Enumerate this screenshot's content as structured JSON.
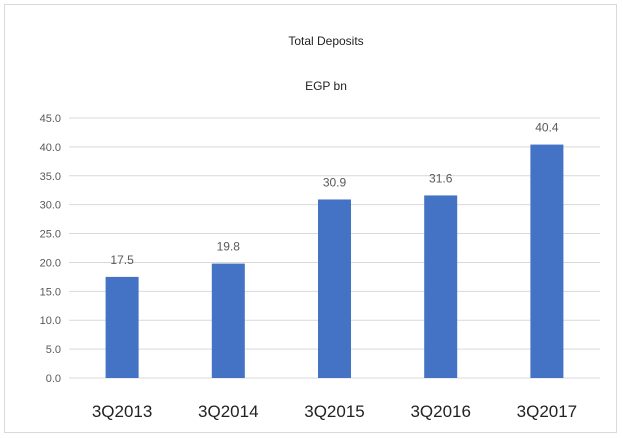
{
  "chart_data": {
    "type": "bar",
    "title": "Total Deposits",
    "subtitle": "EGP bn",
    "xlabel": "",
    "ylabel": "",
    "categories": [
      "3Q2013",
      "3Q2014",
      "3Q2015",
      "3Q2016",
      "3Q2017"
    ],
    "values": [
      17.5,
      19.8,
      30.9,
      31.6,
      40.4
    ],
    "value_labels": [
      "17.5",
      "19.8",
      "30.9",
      "31.6",
      "40.4"
    ],
    "ylim": [
      0,
      45
    ],
    "yticks": [
      "0.0",
      "5.0",
      "10.0",
      "15.0",
      "20.0",
      "25.0",
      "30.0",
      "35.0",
      "40.0",
      "45.0"
    ],
    "grid": true,
    "legend": "none",
    "bar_color": "#4472c4"
  }
}
